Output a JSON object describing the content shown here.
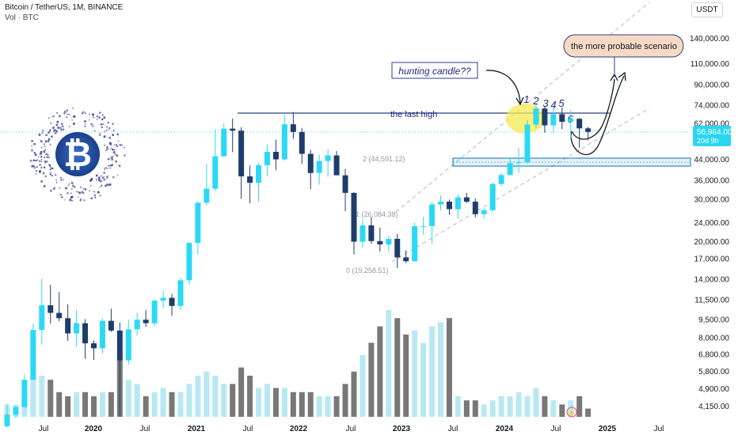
{
  "header": {
    "symbol_line": "Bitcoin / TetherUS, 1M, BINANCE",
    "volume_line": "Vol · BTC",
    "currency_button": "USDT"
  },
  "last_price_label": {
    "price": "56,964.00",
    "countdown": "20d 9h"
  },
  "annotations": {
    "last_high": "the last high",
    "hunting_candle": "hunting candle??",
    "scenario": "the more probable scenario",
    "fib_2": "2 (44,591.12)",
    "fib_1": "1 (26,084.38)",
    "fib_0": "0 (15,258.51)",
    "wave_numbers": [
      "1",
      "2",
      "3",
      "4",
      "5",
      "6"
    ]
  },
  "colors": {
    "up": "#2bd9f5",
    "down": "#1f3d6b",
    "vol_up": "#b8e9f2",
    "vol_down": "#787878",
    "axis_text": "#131722",
    "price_label_bg": "#2ad5f2",
    "channel": "#b2b5be",
    "highlight_circle": "#f2e64a",
    "zone": "#0f6fb0",
    "scenario_box": "#f7d9c4"
  },
  "chart_data": {
    "type": "candlestick",
    "title": "Bitcoin / TetherUS, 1M, BINANCE",
    "interval": "1M",
    "y_scale": "log",
    "ylim": [
      3800,
      330000
    ],
    "y_ticks": [
      "4,150.00",
      "4,900.00",
      "5,800.00",
      "6,800.00",
      "8,000.00",
      "9,500.00",
      "11,500.00",
      "14,000.00",
      "17,000.00",
      "20,000.00",
      "24,000.00",
      "30,000.00",
      "36,000.00",
      "44,000.00",
      "62,000.00",
      "74,000.00",
      "90,000.00",
      "110,000.00",
      "140,000.00"
    ],
    "x_ticks": [
      "Jul",
      "2020",
      "Jul",
      "2021",
      "Jul",
      "2022",
      "Jul",
      "2023",
      "Jul",
      "2024",
      "Jul",
      "2025",
      "Jul"
    ],
    "candles": [
      {
        "date": "2019-02",
        "o": 3410,
        "h": 4200,
        "l": 3380,
        "c": 3810,
        "v": 3
      },
      {
        "date": "2019-03",
        "o": 3810,
        "h": 4150,
        "l": 3700,
        "c": 4100,
        "v": 3
      },
      {
        "date": "2019-04",
        "o": 4100,
        "h": 5600,
        "l": 4050,
        "c": 5320,
        "v": 5
      },
      {
        "date": "2019-05",
        "o": 5320,
        "h": 9100,
        "l": 5300,
        "c": 8570,
        "v": 9
      },
      {
        "date": "2019-06",
        "o": 8570,
        "h": 13970,
        "l": 7450,
        "c": 10850,
        "v": 10
      },
      {
        "date": "2019-07",
        "o": 10850,
        "h": 13200,
        "l": 9100,
        "c": 10090,
        "v": 9
      },
      {
        "date": "2019-08",
        "o": 10090,
        "h": 12330,
        "l": 9320,
        "c": 9590,
        "v": 6
      },
      {
        "date": "2019-09",
        "o": 9590,
        "h": 10950,
        "l": 7710,
        "c": 8290,
        "v": 5
      },
      {
        "date": "2019-10",
        "o": 8290,
        "h": 10370,
        "l": 7300,
        "c": 9140,
        "v": 6
      },
      {
        "date": "2019-11",
        "o": 9140,
        "h": 9500,
        "l": 6500,
        "c": 7540,
        "v": 6
      },
      {
        "date": "2019-12",
        "o": 7540,
        "h": 7750,
        "l": 6430,
        "c": 7190,
        "v": 5
      },
      {
        "date": "2020-01",
        "o": 7190,
        "h": 9580,
        "l": 6850,
        "c": 9350,
        "v": 6
      },
      {
        "date": "2020-02",
        "o": 9350,
        "h": 10500,
        "l": 8400,
        "c": 8520,
        "v": 6
      },
      {
        "date": "2020-03",
        "o": 8520,
        "h": 9190,
        "l": 3780,
        "c": 6410,
        "v": 14
      },
      {
        "date": "2020-04",
        "o": 6410,
        "h": 9470,
        "l": 6150,
        "c": 8620,
        "v": 9
      },
      {
        "date": "2020-05",
        "o": 8620,
        "h": 10070,
        "l": 8120,
        "c": 9450,
        "v": 8
      },
      {
        "date": "2020-06",
        "o": 9450,
        "h": 10380,
        "l": 8830,
        "c": 9140,
        "v": 5
      },
      {
        "date": "2020-07",
        "o": 9140,
        "h": 11450,
        "l": 8900,
        "c": 11340,
        "v": 6
      },
      {
        "date": "2020-08",
        "o": 11340,
        "h": 12470,
        "l": 10520,
        "c": 11650,
        "v": 7
      },
      {
        "date": "2020-09",
        "o": 11650,
        "h": 12070,
        "l": 9820,
        "c": 10780,
        "v": 6
      },
      {
        "date": "2020-10",
        "o": 10780,
        "h": 14100,
        "l": 10370,
        "c": 13790,
        "v": 6
      },
      {
        "date": "2020-11",
        "o": 13790,
        "h": 19860,
        "l": 13200,
        "c": 19700,
        "v": 8
      },
      {
        "date": "2020-12",
        "o": 19700,
        "h": 29300,
        "l": 17570,
        "c": 28920,
        "v": 10
      },
      {
        "date": "2021-01",
        "o": 28920,
        "h": 41950,
        "l": 28130,
        "c": 33090,
        "v": 11
      },
      {
        "date": "2021-02",
        "o": 33090,
        "h": 58350,
        "l": 32300,
        "c": 45140,
        "v": 10
      },
      {
        "date": "2021-03",
        "o": 45140,
        "h": 61780,
        "l": 44950,
        "c": 58790,
        "v": 8
      },
      {
        "date": "2021-04",
        "o": 58790,
        "h": 64850,
        "l": 46930,
        "c": 57690,
        "v": 8
      },
      {
        "date": "2021-05",
        "o": 57690,
        "h": 59600,
        "l": 30000,
        "c": 37250,
        "v": 12
      },
      {
        "date": "2021-06",
        "o": 37250,
        "h": 41330,
        "l": 28800,
        "c": 35040,
        "v": 10
      },
      {
        "date": "2021-07",
        "o": 35040,
        "h": 42450,
        "l": 29280,
        "c": 41460,
        "v": 7
      },
      {
        "date": "2021-08",
        "o": 41460,
        "h": 50500,
        "l": 37330,
        "c": 47100,
        "v": 8
      },
      {
        "date": "2021-09",
        "o": 47100,
        "h": 52920,
        "l": 39600,
        "c": 43820,
        "v": 7
      },
      {
        "date": "2021-10",
        "o": 43820,
        "h": 67000,
        "l": 43280,
        "c": 61300,
        "v": 7
      },
      {
        "date": "2021-11",
        "o": 61300,
        "h": 69000,
        "l": 53250,
        "c": 56950,
        "v": 6
      },
      {
        "date": "2021-12",
        "o": 56950,
        "h": 59050,
        "l": 42000,
        "c": 46200,
        "v": 6
      },
      {
        "date": "2022-01",
        "o": 46200,
        "h": 47990,
        "l": 32900,
        "c": 38470,
        "v": 6
      },
      {
        "date": "2022-02",
        "o": 38470,
        "h": 45820,
        "l": 34320,
        "c": 43160,
        "v": 5
      },
      {
        "date": "2022-03",
        "o": 43160,
        "h": 48190,
        "l": 37150,
        "c": 45510,
        "v": 5
      },
      {
        "date": "2022-04",
        "o": 45510,
        "h": 47440,
        "l": 37700,
        "c": 37630,
        "v": 5
      },
      {
        "date": "2022-05",
        "o": 37630,
        "h": 40020,
        "l": 26700,
        "c": 31800,
        "v": 8
      },
      {
        "date": "2022-06",
        "o": 31800,
        "h": 31980,
        "l": 17620,
        "c": 19940,
        "v": 11
      },
      {
        "date": "2022-07",
        "o": 19940,
        "h": 24670,
        "l": 18780,
        "c": 23300,
        "v": 15
      },
      {
        "date": "2022-08",
        "o": 23300,
        "h": 25210,
        "l": 19520,
        "c": 20050,
        "v": 18
      },
      {
        "date": "2022-09",
        "o": 20050,
        "h": 22800,
        "l": 18130,
        "c": 19420,
        "v": 22
      },
      {
        "date": "2022-10",
        "o": 19420,
        "h": 21100,
        "l": 18200,
        "c": 20490,
        "v": 26
      },
      {
        "date": "2022-11",
        "o": 20490,
        "h": 21480,
        "l": 15480,
        "c": 17160,
        "v": 24
      },
      {
        "date": "2022-12",
        "o": 17160,
        "h": 18390,
        "l": 16250,
        "c": 16540,
        "v": 20
      },
      {
        "date": "2023-01",
        "o": 16540,
        "h": 23960,
        "l": 16500,
        "c": 23130,
        "v": 21
      },
      {
        "date": "2023-02",
        "o": 23130,
        "h": 25250,
        "l": 21350,
        "c": 23140,
        "v": 18
      },
      {
        "date": "2023-03",
        "o": 23140,
        "h": 29180,
        "l": 19550,
        "c": 28480,
        "v": 22
      },
      {
        "date": "2023-04",
        "o": 28480,
        "h": 31000,
        "l": 26940,
        "c": 29240,
        "v": 23
      },
      {
        "date": "2023-05",
        "o": 29240,
        "h": 29820,
        "l": 25810,
        "c": 27210,
        "v": 24
      },
      {
        "date": "2023-06",
        "o": 27210,
        "h": 31390,
        "l": 24800,
        "c": 30470,
        "v": 5
      },
      {
        "date": "2023-07",
        "o": 30470,
        "h": 31800,
        "l": 28860,
        "c": 29230,
        "v": 4
      },
      {
        "date": "2023-08",
        "o": 29230,
        "h": 30200,
        "l": 25170,
        "c": 25940,
        "v": 4
      },
      {
        "date": "2023-09",
        "o": 25940,
        "h": 27480,
        "l": 24900,
        "c": 26960,
        "v": 3
      },
      {
        "date": "2023-10",
        "o": 26960,
        "h": 35200,
        "l": 26540,
        "c": 34640,
        "v": 4
      },
      {
        "date": "2023-11",
        "o": 34640,
        "h": 38450,
        "l": 34100,
        "c": 37720,
        "v": 5
      },
      {
        "date": "2023-12",
        "o": 37720,
        "h": 44700,
        "l": 37620,
        "c": 42280,
        "v": 5
      },
      {
        "date": "2024-01",
        "o": 42280,
        "h": 48970,
        "l": 38550,
        "c": 42580,
        "v": 6
      },
      {
        "date": "2024-02",
        "o": 42580,
        "h": 64000,
        "l": 41880,
        "c": 61130,
        "v": 5
      },
      {
        "date": "2024-03",
        "o": 61130,
        "h": 73780,
        "l": 59000,
        "c": 71290,
        "v": 7
      },
      {
        "date": "2024-04",
        "o": 71290,
        "h": 72800,
        "l": 56550,
        "c": 60670,
        "v": 5
      },
      {
        "date": "2024-05",
        "o": 60670,
        "h": 71980,
        "l": 56550,
        "c": 67540,
        "v": 4
      },
      {
        "date": "2024-06",
        "o": 67540,
        "h": 71950,
        "l": 58400,
        "c": 62770,
        "v": 3
      },
      {
        "date": "2024-07",
        "o": 62770,
        "h": 70080,
        "l": 53480,
        "c": 64620,
        "v": 4
      },
      {
        "date": "2024-08",
        "o": 64620,
        "h": 65100,
        "l": 49000,
        "c": 58970,
        "v": 5
      },
      {
        "date": "2024-09",
        "o": 58970,
        "h": 59810,
        "l": 52600,
        "c": 56964,
        "v": 2
      }
    ]
  }
}
